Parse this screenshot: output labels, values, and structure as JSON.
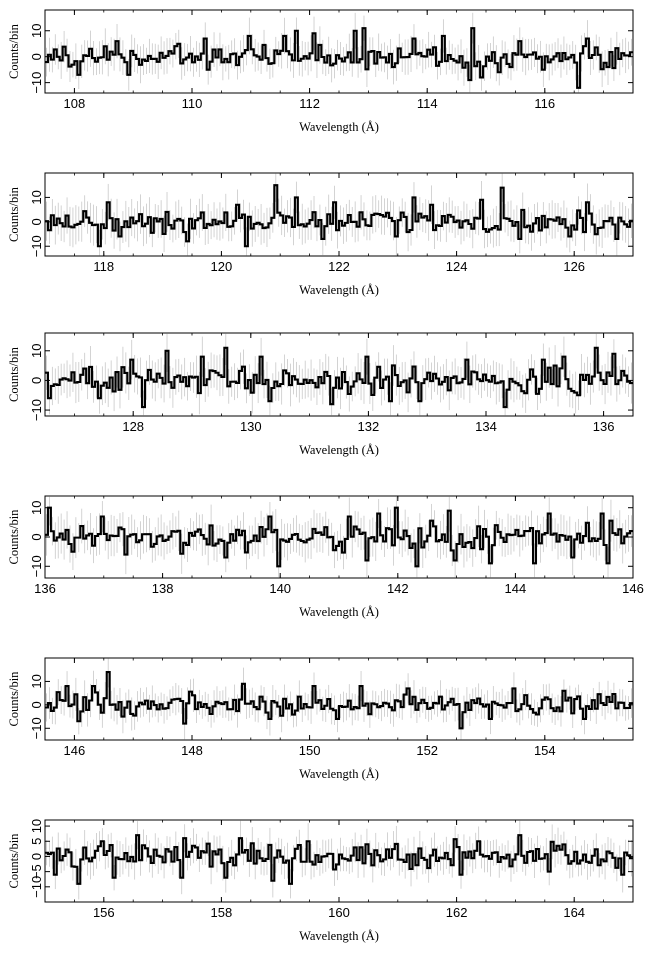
{
  "chart_data": [
    {
      "type": "line",
      "style": "step with error bars",
      "xlabel": "Wavelength (Å)",
      "ylabel": "Counts/bin",
      "xlim": [
        107.5,
        117.5
      ],
      "ylim": [
        -14,
        18
      ],
      "xticks": [
        108,
        110,
        112,
        114,
        116
      ],
      "yticks": [
        -10,
        0,
        10
      ],
      "bin_width": 0.05,
      "error_bar": 6,
      "peaks": [
        [
          108.7,
          6
        ],
        [
          110.2,
          7
        ],
        [
          111.0,
          8
        ],
        [
          111.6,
          8
        ],
        [
          111.8,
          10
        ],
        [
          112.1,
          9
        ],
        [
          112.8,
          10
        ],
        [
          112.9,
          11
        ],
        [
          113.8,
          7
        ],
        [
          114.3,
          8
        ],
        [
          114.8,
          11
        ],
        [
          114.9,
          10
        ],
        [
          115.6,
          6
        ],
        [
          116.7,
          7
        ]
      ],
      "dips": [
        [
          108.1,
          -7
        ],
        [
          108.9,
          -7
        ],
        [
          110.3,
          -5
        ],
        [
          113.4,
          -4
        ],
        [
          114.7,
          -9
        ],
        [
          114.9,
          -8
        ],
        [
          115.2,
          -6
        ],
        [
          116.0,
          -5
        ],
        [
          116.6,
          -12
        ],
        [
          117.1,
          -4
        ]
      ]
    },
    {
      "type": "line",
      "style": "step with error bars",
      "xlabel": "Wavelength (Å)",
      "ylabel": "Counts/bin",
      "xlim": [
        117.0,
        127.0
      ],
      "ylim": [
        -14,
        20
      ],
      "xticks": [
        118,
        120,
        122,
        124,
        126
      ],
      "yticks": [
        -10,
        0,
        10
      ],
      "bin_width": 0.05,
      "error_bar": 7,
      "peaks": [
        [
          118.1,
          8
        ],
        [
          120.3,
          7
        ],
        [
          120.9,
          15
        ],
        [
          121.3,
          10
        ],
        [
          121.9,
          8
        ],
        [
          123.3,
          10
        ],
        [
          123.6,
          7
        ],
        [
          124.4,
          9
        ],
        [
          124.8,
          14
        ],
        [
          126.2,
          8
        ]
      ],
      "dips": [
        [
          117.9,
          -10
        ],
        [
          118.3,
          -6
        ],
        [
          119.4,
          -8
        ],
        [
          120.4,
          -10
        ],
        [
          121.7,
          -7
        ],
        [
          123.0,
          -6
        ],
        [
          125.1,
          -7
        ],
        [
          125.9,
          -6
        ],
        [
          126.7,
          -7
        ]
      ]
    },
    {
      "type": "line",
      "style": "step with error bars",
      "xlabel": "Wavelength (Å)",
      "ylabel": "Counts/bin",
      "xlim": [
        126.5,
        136.5
      ],
      "ylim": [
        -12,
        16
      ],
      "xticks": [
        128,
        130,
        132,
        134,
        136
      ],
      "yticks": [
        -10,
        0,
        10
      ],
      "bin_width": 0.05,
      "error_bar": 6,
      "peaks": [
        [
          128.0,
          7
        ],
        [
          128.6,
          10
        ],
        [
          129.2,
          8
        ],
        [
          129.6,
          11
        ],
        [
          130.2,
          8
        ],
        [
          132.0,
          8
        ],
        [
          133.7,
          7
        ],
        [
          135.0,
          7
        ],
        [
          135.3,
          8
        ],
        [
          135.9,
          11
        ],
        [
          136.2,
          9
        ]
      ],
      "dips": [
        [
          126.6,
          -6
        ],
        [
          127.4,
          -6
        ],
        [
          128.2,
          -9
        ],
        [
          130.3,
          -7
        ],
        [
          131.4,
          -8
        ],
        [
          132.4,
          -7
        ],
        [
          132.9,
          -7
        ],
        [
          134.3,
          -9
        ],
        [
          135.6,
          -5
        ]
      ]
    },
    {
      "type": "line",
      "style": "step with error bars",
      "xlabel": "Wavelength (Å)",
      "ylabel": "Counts/bin",
      "xlim": [
        136.0,
        146.0
      ],
      "ylim": [
        -14,
        14
      ],
      "xticks": [
        136,
        138,
        140,
        142,
        144,
        146
      ],
      "yticks": [
        -10,
        0,
        10
      ],
      "bin_width": 0.05,
      "error_bar": 6,
      "peaks": [
        [
          136.1,
          10
        ],
        [
          137.0,
          7
        ],
        [
          139.8,
          7
        ],
        [
          141.2,
          7
        ],
        [
          141.7,
          8
        ],
        [
          142.0,
          10
        ],
        [
          142.9,
          9
        ],
        [
          144.6,
          8
        ],
        [
          145.5,
          8
        ]
      ],
      "dips": [
        [
          136.5,
          -5
        ],
        [
          137.4,
          -6
        ],
        [
          139.1,
          -7
        ],
        [
          140.0,
          -10
        ],
        [
          141.5,
          -8
        ],
        [
          142.3,
          -10
        ],
        [
          143.0,
          -8
        ],
        [
          143.6,
          -9
        ],
        [
          144.3,
          -9
        ],
        [
          145.0,
          -7
        ],
        [
          145.6,
          -9
        ]
      ]
    },
    {
      "type": "line",
      "style": "step with error bars",
      "xlabel": "Wavelength (Å)",
      "ylabel": "Counts/bin",
      "xlim": [
        145.5,
        155.5
      ],
      "ylim": [
        -15,
        20
      ],
      "xticks": [
        146,
        148,
        150,
        152,
        154
      ],
      "yticks": [
        -10,
        0,
        10
      ],
      "bin_width": 0.05,
      "error_bar": 6,
      "peaks": [
        [
          145.9,
          8
        ],
        [
          146.3,
          8
        ],
        [
          146.6,
          14
        ],
        [
          148.9,
          9
        ],
        [
          150.1,
          8
        ],
        [
          150.9,
          8
        ],
        [
          151.7,
          7
        ],
        [
          153.5,
          7
        ],
        [
          154.3,
          6
        ]
      ],
      "dips": [
        [
          146.1,
          -7
        ],
        [
          146.8,
          -5
        ],
        [
          147.9,
          -8
        ],
        [
          149.3,
          -6
        ],
        [
          150.5,
          -6
        ],
        [
          152.6,
          -10
        ],
        [
          153.1,
          -6
        ],
        [
          154.7,
          -6
        ]
      ]
    },
    {
      "type": "line",
      "style": "step with error bars",
      "xlabel": "Wavelength (Å)",
      "ylabel": "Counts/bin",
      "xlim": [
        155.0,
        165.0
      ],
      "ylim": [
        -15,
        12
      ],
      "xticks": [
        156,
        158,
        160,
        162,
        164
      ],
      "yticks": [
        -10,
        -5,
        0,
        5,
        10
      ],
      "bin_width": 0.05,
      "error_bar": 5,
      "peaks": [
        [
          155.6,
          3
        ],
        [
          156.0,
          5
        ],
        [
          156.6,
          7
        ],
        [
          157.4,
          6
        ],
        [
          158.3,
          6
        ],
        [
          159.5,
          5
        ],
        [
          160.4,
          3
        ],
        [
          162.4,
          5
        ],
        [
          163.1,
          7
        ]
      ],
      "dips": [
        [
          155.2,
          -6
        ],
        [
          155.6,
          -9
        ],
        [
          156.2,
          -7
        ],
        [
          157.3,
          -7
        ],
        [
          158.1,
          -7
        ],
        [
          158.9,
          -8
        ],
        [
          159.2,
          -9
        ],
        [
          162.1,
          -6
        ],
        [
          163.6,
          -5
        ],
        [
          164.8,
          -6
        ]
      ]
    }
  ]
}
